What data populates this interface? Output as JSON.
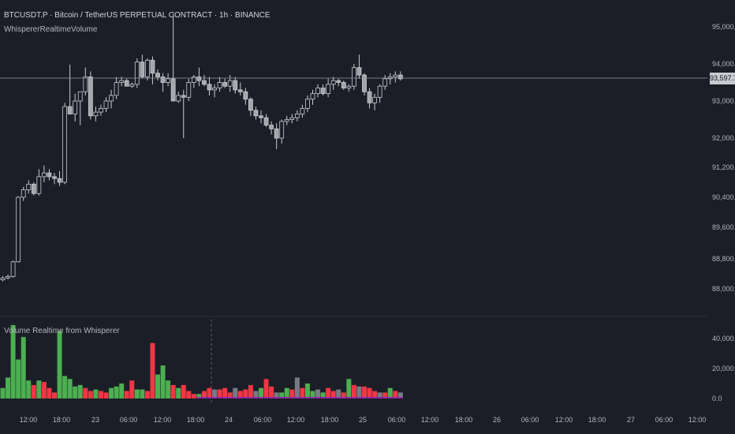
{
  "header": {
    "title": "BTCUSDT.P · Bitcoin / TetherUS PERPETUAL CONTRACT · 1h · BINANCE",
    "indicator_name": "WhispererRealtimeVolume",
    "volume_pane_title": "Volume Realtime from Whisperer"
  },
  "price_axis": {
    "labels": [
      "95,000.0",
      "94,000.0",
      "93,000.0",
      "92,000.0",
      "91,200.0",
      "90,400.0",
      "89,600.0",
      "88,800.0",
      "88,000.0"
    ],
    "current_price": "93,597.7"
  },
  "volume_axis": {
    "labels": [
      "40,000.0",
      "20,000.0",
      "0.0"
    ]
  },
  "time_axis": {
    "labels": [
      "12:00",
      "18:00",
      "23",
      "06:00",
      "12:00",
      "18:00",
      "24",
      "06:00",
      "12:00",
      "18:00",
      "25",
      "06:00",
      "12:00",
      "18:00",
      "26",
      "06:00",
      "12:00",
      "18:00",
      "27",
      "06:00",
      "12:00"
    ]
  },
  "colors": {
    "background": "#1b1e27",
    "candle_up": "#1b1e27",
    "candle_down": "#a3a6ad",
    "wick": "#c9cbd0",
    "volume_up": "#4caf50",
    "volume_down": "#f23645",
    "volume_overlay": "#9c27b0",
    "volume_gray": "#787b86"
  },
  "chart_data": {
    "type": "candlestick",
    "timeframe": "1h",
    "candles_ohlc": [
      [
        88240,
        88340,
        88200,
        88290
      ],
      [
        88290,
        88380,
        88250,
        88330
      ],
      [
        88330,
        88750,
        88300,
        88720
      ],
      [
        88720,
        90430,
        88700,
        90400
      ],
      [
        90400,
        90680,
        90300,
        90600
      ],
      [
        90600,
        90850,
        90500,
        90750
      ],
      [
        90750,
        90800,
        90450,
        90500
      ],
      [
        90500,
        91150,
        90450,
        90950
      ],
      [
        90950,
        91250,
        90800,
        91050
      ],
      [
        91050,
        91150,
        90850,
        90950
      ],
      [
        90950,
        91050,
        90750,
        90900
      ],
      [
        90900,
        91100,
        90700,
        90800
      ],
      [
        90800,
        92950,
        90750,
        92850
      ],
      [
        92850,
        93980,
        92750,
        92650
      ],
      [
        92650,
        93200,
        92450,
        93000
      ],
      [
        93000,
        93200,
        92350,
        93250
      ],
      [
        93250,
        93900,
        93150,
        93650
      ],
      [
        93650,
        93800,
        92500,
        92600
      ],
      [
        92600,
        92850,
        92450,
        92700
      ],
      [
        92700,
        92900,
        92600,
        92800
      ],
      [
        92800,
        93100,
        92700,
        93000
      ],
      [
        93000,
        93300,
        92800,
        93150
      ],
      [
        93150,
        93650,
        93050,
        93500
      ],
      [
        93500,
        93650,
        93400,
        93550
      ],
      [
        93550,
        93600,
        93400,
        93400
      ],
      [
        93400,
        93500,
        93350,
        93450
      ],
      [
        93450,
        94150,
        93350,
        94050
      ],
      [
        94050,
        94250,
        93600,
        93650
      ],
      [
        93650,
        94150,
        93550,
        94100
      ],
      [
        94100,
        94200,
        93450,
        93750
      ],
      [
        93750,
        93850,
        93550,
        93650
      ],
      [
        93650,
        93750,
        93250,
        93500
      ],
      [
        93500,
        93750,
        93400,
        93600
      ],
      [
        93600,
        95350,
        93400,
        93000
      ],
      [
        93000,
        93250,
        92950,
        93150
      ],
      [
        93150,
        93300,
        92000,
        93100
      ],
      [
        93100,
        93600,
        93000,
        93500
      ],
      [
        93500,
        93700,
        93350,
        93650
      ],
      [
        93650,
        93900,
        93400,
        93550
      ],
      [
        93550,
        93700,
        93400,
        93450
      ],
      [
        93450,
        93650,
        93150,
        93300
      ],
      [
        93300,
        93450,
        93100,
        93350
      ],
      [
        93350,
        93650,
        93250,
        93500
      ],
      [
        93500,
        93600,
        93350,
        93400
      ],
      [
        93400,
        93700,
        93250,
        93550
      ],
      [
        93550,
        93650,
        93200,
        93300
      ],
      [
        93300,
        93500,
        93150,
        93250
      ],
      [
        93250,
        93350,
        92900,
        93050
      ],
      [
        93050,
        93100,
        92600,
        92750
      ],
      [
        92750,
        92850,
        92500,
        92600
      ],
      [
        92600,
        92750,
        92400,
        92550
      ],
      [
        92550,
        92650,
        92300,
        92350
      ],
      [
        92350,
        92450,
        92100,
        92250
      ],
      [
        92250,
        92400,
        91700,
        92000
      ],
      [
        92000,
        92500,
        91850,
        92450
      ],
      [
        92450,
        92600,
        92350,
        92500
      ],
      [
        92500,
        92650,
        92400,
        92550
      ],
      [
        92550,
        92750,
        92450,
        92650
      ],
      [
        92650,
        92900,
        92550,
        92800
      ],
      [
        92800,
        93150,
        92700,
        93050
      ],
      [
        93050,
        93300,
        92900,
        93200
      ],
      [
        93200,
        93450,
        93100,
        93350
      ],
      [
        93350,
        93450,
        93150,
        93200
      ],
      [
        93200,
        93600,
        93100,
        93450
      ],
      [
        93450,
        93650,
        93300,
        93550
      ],
      [
        93550,
        93600,
        93400,
        93500
      ],
      [
        93500,
        93550,
        93300,
        93350
      ],
      [
        93350,
        93450,
        93250,
        93400
      ],
      [
        93400,
        94000,
        93300,
        93900
      ],
      [
        93900,
        94250,
        93600,
        93700
      ],
      [
        93700,
        93750,
        93150,
        93250
      ],
      [
        93250,
        93350,
        92800,
        92950
      ],
      [
        92950,
        93200,
        92750,
        93100
      ],
      [
        93100,
        93450,
        92950,
        93400
      ],
      [
        93400,
        93700,
        93300,
        93600
      ],
      [
        93600,
        93750,
        93450,
        93650
      ],
      [
        93650,
        93800,
        93500,
        93700
      ],
      [
        93700,
        93800,
        93550,
        93598
      ]
    ],
    "volume_values": [
      [
        7000,
        "up"
      ],
      [
        14000,
        "up"
      ],
      [
        49000,
        "up"
      ],
      [
        26000,
        "up"
      ],
      [
        41000,
        "up"
      ],
      [
        12000,
        "up"
      ],
      [
        9000,
        "down"
      ],
      [
        12000,
        "up"
      ],
      [
        11000,
        "down"
      ],
      [
        7000,
        "down"
      ],
      [
        4000,
        "down"
      ],
      [
        45000,
        "up"
      ],
      [
        15000,
        "up"
      ],
      [
        13000,
        "up"
      ],
      [
        8000,
        "up"
      ],
      [
        9000,
        "up"
      ],
      [
        7000,
        "down"
      ],
      [
        5000,
        "down"
      ],
      [
        6000,
        "up"
      ],
      [
        5000,
        "down"
      ],
      [
        4000,
        "down"
      ],
      [
        7000,
        "up"
      ],
      [
        8000,
        "up"
      ],
      [
        10000,
        "up"
      ],
      [
        5000,
        "down"
      ],
      [
        12000,
        "down"
      ],
      [
        6000,
        "up"
      ],
      [
        6000,
        "up"
      ],
      [
        5000,
        "down"
      ],
      [
        37000,
        "down"
      ],
      [
        16000,
        "up"
      ],
      [
        22000,
        "up"
      ],
      [
        12000,
        "up"
      ],
      [
        9000,
        "down"
      ],
      [
        7000,
        "up"
      ],
      [
        9000,
        "down"
      ],
      [
        5000,
        "down"
      ],
      [
        3000,
        "down"
      ],
      [
        3000,
        "up"
      ],
      [
        5000,
        "down"
      ],
      [
        7000,
        "down"
      ],
      [
        6000,
        "down"
      ],
      [
        6000,
        "down"
      ],
      [
        7000,
        "down"
      ],
      [
        4000,
        "down"
      ],
      [
        7000,
        "down"
      ],
      [
        5000,
        "down"
      ],
      [
        6000,
        "down"
      ],
      [
        9000,
        "down"
      ],
      [
        5000,
        "down"
      ],
      [
        7000,
        "up"
      ],
      [
        13000,
        "down"
      ],
      [
        8000,
        "down"
      ],
      [
        4000,
        "up"
      ],
      [
        4000,
        "up"
      ],
      [
        7000,
        "up"
      ],
      [
        6000,
        "down"
      ],
      [
        14000,
        "down"
      ],
      [
        7000,
        "down"
      ],
      [
        10000,
        "up"
      ],
      [
        5000,
        "up"
      ],
      [
        6000,
        "down"
      ],
      [
        4000,
        "up"
      ],
      [
        7000,
        "down"
      ],
      [
        5000,
        "down"
      ],
      [
        6000,
        "down"
      ],
      [
        4000,
        "down"
      ],
      [
        13000,
        "up"
      ],
      [
        9000,
        "down"
      ],
      [
        8000,
        "down"
      ],
      [
        8000,
        "down"
      ],
      [
        7000,
        "down"
      ],
      [
        5000,
        "down"
      ],
      [
        4000,
        "down"
      ],
      [
        4000,
        "down"
      ],
      [
        7000,
        "up"
      ],
      [
        5000,
        "down"
      ],
      [
        4000,
        "down"
      ]
    ],
    "price_ylim": [
      87400,
      95300
    ],
    "volume_ylim": [
      0,
      52000
    ]
  }
}
